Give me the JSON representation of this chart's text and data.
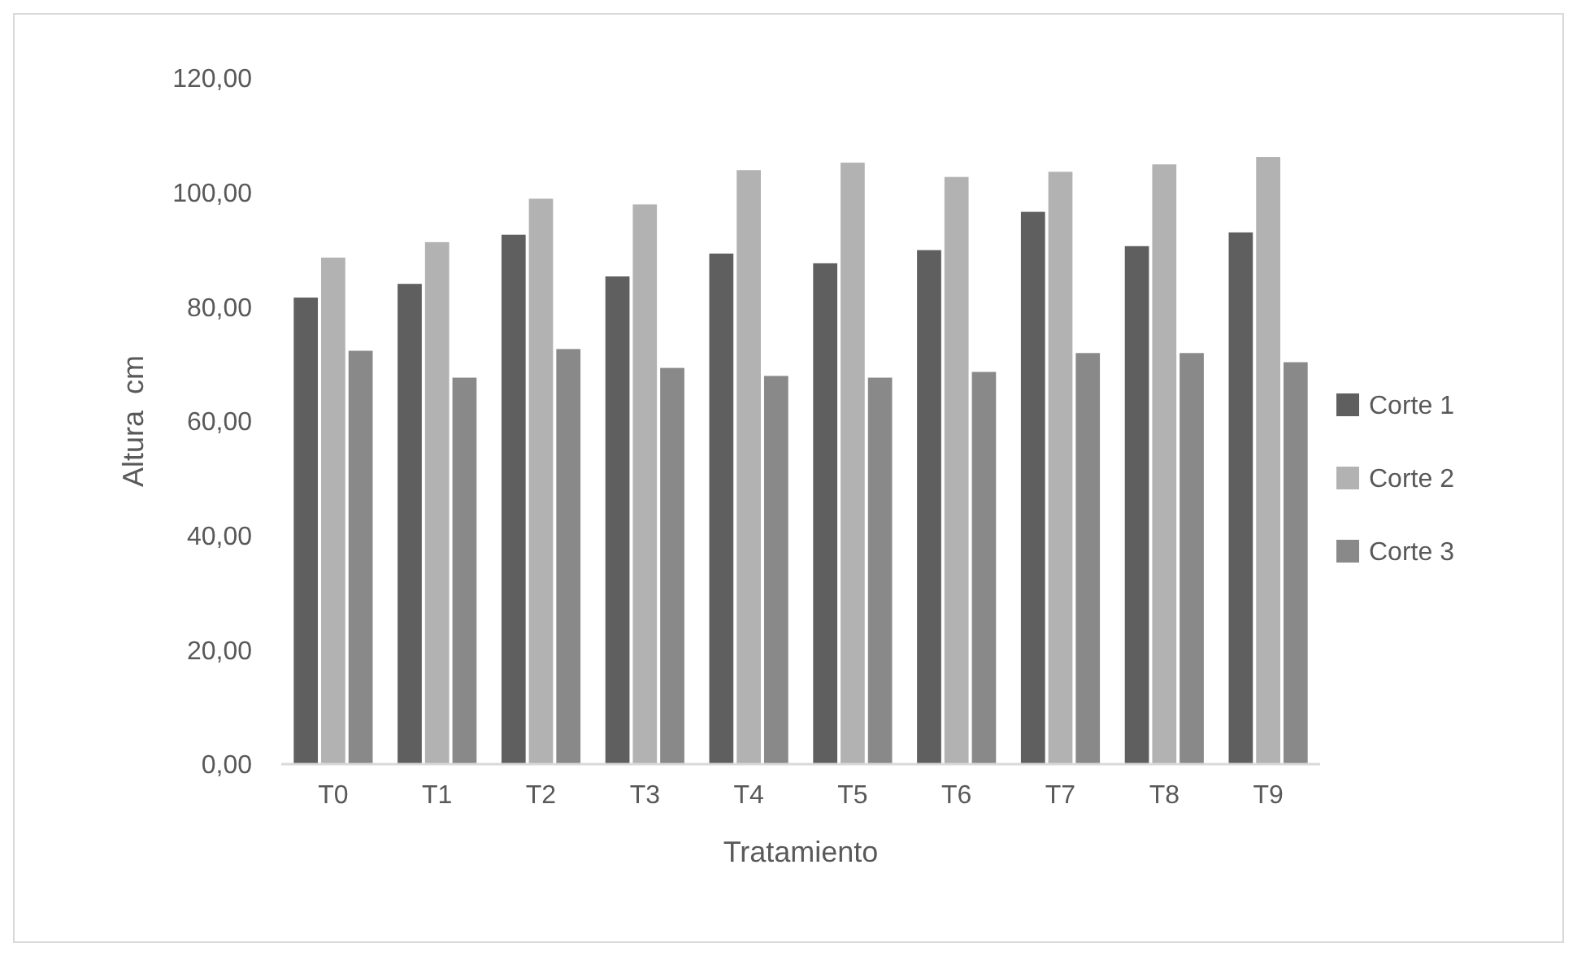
{
  "chart_data": {
    "type": "bar",
    "xlabel": "Tratamiento",
    "ylabel": "Altura  cm",
    "categories": [
      "T0",
      "T1",
      "T2",
      "T3",
      "T4",
      "T5",
      "T6",
      "T7",
      "T8",
      "T9"
    ],
    "series": [
      {
        "name": "Corte 1",
        "color": "#5f5f5f",
        "values": [
          81.6,
          84.0,
          92.6,
          85.3,
          89.3,
          87.6,
          89.9,
          96.6,
          90.6,
          93.0
        ]
      },
      {
        "name": "Corte 2",
        "color": "#b2b2b2",
        "values": [
          88.6,
          91.3,
          98.9,
          97.9,
          103.9,
          105.2,
          102.7,
          103.6,
          104.9,
          106.2
        ]
      },
      {
        "name": "Corte 3",
        "color": "#898989",
        "values": [
          72.3,
          67.6,
          72.6,
          69.3,
          67.9,
          67.6,
          68.6,
          71.9,
          71.9,
          70.3
        ]
      }
    ],
    "ylim": [
      0,
      120
    ],
    "yticks": [
      {
        "value": 0,
        "label": "0,00"
      },
      {
        "value": 20,
        "label": "20,00"
      },
      {
        "value": 40,
        "label": "40,00"
      },
      {
        "value": 60,
        "label": "60,00"
      },
      {
        "value": 80,
        "label": "80,00"
      },
      {
        "value": 100,
        "label": "100,00"
      },
      {
        "value": 120,
        "label": "120,00"
      }
    ],
    "grid": false,
    "legend": "right"
  }
}
